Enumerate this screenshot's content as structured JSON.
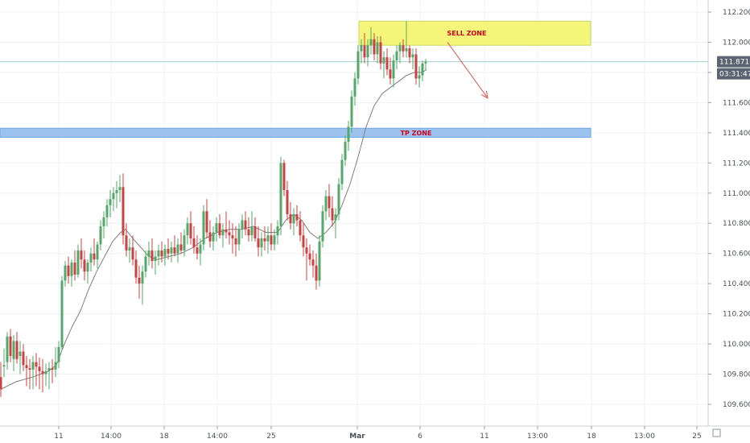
{
  "chart_data": {
    "type": "candlestick",
    "ylim": [
      109.55,
      112.28
    ],
    "xlim": [
      0,
      880
    ],
    "y_ticks": [
      "112.200",
      "112.000",
      "111.800",
      "111.600",
      "111.400",
      "111.200",
      "111.000",
      "110.800",
      "110.600",
      "110.400",
      "110.200",
      "110.000",
      "109.800",
      "109.600"
    ],
    "x_ticks": [
      {
        "label": "11",
        "x": 73,
        "bold": false
      },
      {
        "label": "14:00",
        "x": 138,
        "bold": false
      },
      {
        "label": "18",
        "x": 204,
        "bold": false
      },
      {
        "label": "14:00",
        "x": 270,
        "bold": false
      },
      {
        "label": "25",
        "x": 337,
        "bold": false
      },
      {
        "label": "Mar",
        "x": 444,
        "bold": true
      },
      {
        "label": "6",
        "x": 522,
        "bold": false
      },
      {
        "label": "11",
        "x": 602,
        "bold": false
      },
      {
        "label": "13:00",
        "x": 668,
        "bold": false
      },
      {
        "label": "18",
        "x": 735,
        "bold": false
      },
      {
        "label": "13:00",
        "x": 801,
        "bold": false
      },
      {
        "label": "25",
        "x": 866,
        "bold": false
      }
    ],
    "last_price": "111.871",
    "countdown": "03:31:47",
    "zones": [
      {
        "label": "SELL ZONE",
        "from_x": 446,
        "to_x": 734,
        "y_low": 111.98,
        "y_high": 112.14,
        "fill": "#f5f57a",
        "text_color": "#d0021b"
      },
      {
        "label": "TP ZONE",
        "from_x": 0,
        "to_x": 734,
        "y_low": 111.37,
        "y_high": 111.43,
        "fill": "#9cc3ef",
        "text_color": "#d0021b"
      }
    ],
    "arrow": {
      "from": [
        556,
        112.0
      ],
      "to": [
        606,
        111.63
      ],
      "color": "#e0504f"
    },
    "colors": {
      "up": "#53a96a",
      "down": "#cc4242",
      "ma": "#7d7d7d",
      "grid": "#eef0f3",
      "price_line": "#79b8b1"
    },
    "candles": [
      [
        1,
        109.78,
        109.88,
        109.65,
        109.7
      ],
      [
        5,
        109.85,
        109.97,
        109.78,
        109.86
      ],
      [
        9,
        109.88,
        110.08,
        109.83,
        110.05
      ],
      [
        13,
        110.05,
        110.1,
        109.88,
        109.92
      ],
      [
        17,
        109.9,
        110.06,
        109.82,
        110.02
      ],
      [
        21,
        110.02,
        110.08,
        109.87,
        109.9
      ],
      [
        25,
        109.92,
        110.02,
        109.8,
        109.95
      ],
      [
        29,
        109.95,
        110.0,
        109.82,
        109.86
      ],
      [
        33,
        109.86,
        109.92,
        109.72,
        109.84
      ],
      [
        37,
        109.84,
        109.9,
        109.7,
        109.83
      ],
      [
        41,
        109.83,
        109.92,
        109.7,
        109.88
      ],
      [
        45,
        109.88,
        109.94,
        109.72,
        109.85
      ],
      [
        49,
        109.85,
        109.91,
        109.7,
        109.82
      ],
      [
        53,
        109.82,
        109.9,
        109.68,
        109.8
      ],
      [
        57,
        109.8,
        109.87,
        109.72,
        109.82
      ],
      [
        61,
        109.82,
        109.88,
        109.7,
        109.84
      ],
      [
        65,
        109.84,
        109.9,
        109.74,
        109.83
      ],
      [
        69,
        109.83,
        109.98,
        109.78,
        109.88
      ],
      [
        73,
        109.88,
        110.02,
        109.84,
        109.98
      ],
      [
        77,
        109.98,
        110.45,
        109.96,
        110.42
      ],
      [
        81,
        110.42,
        110.55,
        110.38,
        110.52
      ],
      [
        85,
        110.52,
        110.58,
        110.4,
        110.45
      ],
      [
        89,
        110.45,
        110.56,
        110.38,
        110.54
      ],
      [
        93,
        110.54,
        110.62,
        110.42,
        110.46
      ],
      [
        97,
        110.46,
        110.66,
        110.44,
        110.62
      ],
      [
        101,
        110.62,
        110.7,
        110.5,
        110.56
      ],
      [
        105,
        110.56,
        110.62,
        110.42,
        110.48
      ],
      [
        109,
        110.48,
        110.56,
        110.4,
        110.54
      ],
      [
        113,
        110.54,
        110.64,
        110.48,
        110.6
      ],
      [
        117,
        110.6,
        110.7,
        110.52,
        110.56
      ],
      [
        121,
        110.56,
        110.68,
        110.5,
        110.66
      ],
      [
        125,
        110.66,
        110.82,
        110.62,
        110.78
      ],
      [
        129,
        110.78,
        110.88,
        110.7,
        110.84
      ],
      [
        133,
        110.84,
        110.96,
        110.78,
        110.92
      ],
      [
        137,
        110.92,
        111.02,
        110.84,
        110.96
      ],
      [
        141,
        110.96,
        111.04,
        110.88,
        111.0
      ],
      [
        145,
        111.0,
        111.08,
        110.9,
        111.02
      ],
      [
        149,
        111.02,
        111.12,
        110.94,
        111.04
      ],
      [
        153,
        111.04,
        111.13,
        110.66,
        110.72
      ],
      [
        157,
        110.72,
        110.8,
        110.58,
        110.62
      ],
      [
        161,
        110.62,
        110.7,
        110.54,
        110.64
      ],
      [
        165,
        110.64,
        110.72,
        110.52,
        110.56
      ],
      [
        169,
        110.56,
        110.62,
        110.4,
        110.44
      ],
      [
        173,
        110.44,
        110.52,
        110.3,
        110.4
      ],
      [
        177,
        110.4,
        110.52,
        110.26,
        110.48
      ],
      [
        181,
        110.48,
        110.62,
        110.44,
        110.58
      ],
      [
        185,
        110.58,
        110.68,
        110.52,
        110.62
      ],
      [
        189,
        110.62,
        110.7,
        110.5,
        110.55
      ],
      [
        193,
        110.55,
        110.62,
        110.46,
        110.58
      ],
      [
        197,
        110.58,
        110.66,
        110.52,
        110.62
      ],
      [
        201,
        110.62,
        110.68,
        110.54,
        110.58
      ],
      [
        205,
        110.58,
        110.66,
        110.52,
        110.63
      ],
      [
        209,
        110.63,
        110.7,
        110.56,
        110.6
      ],
      [
        213,
        110.6,
        110.68,
        110.54,
        110.64
      ],
      [
        217,
        110.64,
        110.72,
        110.58,
        110.6
      ],
      [
        221,
        110.6,
        110.7,
        110.54,
        110.66
      ],
      [
        225,
        110.66,
        110.74,
        110.6,
        110.62
      ],
      [
        229,
        110.62,
        110.76,
        110.58,
        110.72
      ],
      [
        233,
        110.72,
        110.84,
        110.66,
        110.8
      ],
      [
        237,
        110.8,
        110.88,
        110.66,
        110.7
      ],
      [
        241,
        110.7,
        110.78,
        110.6,
        110.64
      ],
      [
        245,
        110.64,
        110.72,
        110.56,
        110.6
      ],
      [
        249,
        110.6,
        110.7,
        110.52,
        110.66
      ],
      [
        253,
        110.66,
        110.92,
        110.62,
        110.88
      ],
      [
        257,
        110.88,
        110.96,
        110.7,
        110.74
      ],
      [
        261,
        110.74,
        110.82,
        110.64,
        110.68
      ],
      [
        265,
        110.68,
        110.78,
        110.62,
        110.74
      ],
      [
        269,
        110.74,
        110.84,
        110.68,
        110.8
      ],
      [
        273,
        110.8,
        110.86,
        110.7,
        110.72
      ],
      [
        277,
        110.72,
        110.8,
        110.64,
        110.76
      ],
      [
        281,
        110.76,
        110.88,
        110.7,
        110.74
      ],
      [
        285,
        110.74,
        110.82,
        110.66,
        110.72
      ],
      [
        289,
        110.72,
        110.8,
        110.6,
        110.7
      ],
      [
        293,
        110.7,
        110.78,
        110.58,
        110.66
      ],
      [
        297,
        110.66,
        110.8,
        110.62,
        110.76
      ],
      [
        301,
        110.76,
        110.86,
        110.7,
        110.82
      ],
      [
        305,
        110.82,
        110.88,
        110.72,
        110.76
      ],
      [
        309,
        110.76,
        110.84,
        110.68,
        110.72
      ],
      [
        313,
        110.72,
        110.88,
        110.68,
        110.78
      ],
      [
        317,
        110.78,
        110.84,
        110.68,
        110.7
      ],
      [
        321,
        110.7,
        110.78,
        110.58,
        110.64
      ],
      [
        325,
        110.64,
        110.74,
        110.58,
        110.7
      ],
      [
        329,
        110.7,
        110.78,
        110.62,
        110.68
      ],
      [
        333,
        110.68,
        110.78,
        110.6,
        110.72
      ],
      [
        337,
        110.72,
        110.8,
        110.62,
        110.66
      ],
      [
        341,
        110.66,
        110.76,
        110.62,
        110.72
      ],
      [
        345,
        110.72,
        110.82,
        110.66,
        110.78
      ],
      [
        349,
        110.78,
        111.24,
        110.72,
        111.2
      ],
      [
        353,
        111.2,
        111.22,
        110.98,
        111.02
      ],
      [
        357,
        111.02,
        111.08,
        110.82,
        110.86
      ],
      [
        361,
        110.86,
        110.94,
        110.76,
        110.8
      ],
      [
        365,
        110.8,
        110.9,
        110.72,
        110.86
      ],
      [
        369,
        110.86,
        110.92,
        110.78,
        110.82
      ],
      [
        373,
        110.82,
        110.88,
        110.68,
        110.72
      ],
      [
        377,
        110.72,
        110.8,
        110.58,
        110.64
      ],
      [
        381,
        110.64,
        110.7,
        110.42,
        110.6
      ],
      [
        385,
        110.6,
        110.66,
        110.52,
        110.56
      ],
      [
        389,
        110.56,
        110.62,
        110.44,
        110.52
      ],
      [
        393,
        110.52,
        110.6,
        110.36,
        110.42
      ],
      [
        397,
        110.42,
        110.72,
        110.38,
        110.68
      ],
      [
        401,
        110.68,
        110.92,
        110.64,
        110.88
      ],
      [
        405,
        110.88,
        111.02,
        110.82,
        110.98
      ],
      [
        409,
        110.98,
        111.06,
        110.84,
        110.9
      ],
      [
        413,
        110.9,
        110.98,
        110.78,
        110.82
      ],
      [
        417,
        110.82,
        110.9,
        110.7,
        110.86
      ],
      [
        421,
        110.86,
        111.1,
        110.82,
        111.06
      ],
      [
        425,
        111.06,
        111.26,
        111.02,
        111.22
      ],
      [
        429,
        111.22,
        111.38,
        111.18,
        111.34
      ],
      [
        433,
        111.34,
        111.48,
        111.28,
        111.44
      ],
      [
        437,
        111.44,
        111.68,
        111.4,
        111.64
      ],
      [
        441,
        111.64,
        111.8,
        111.58,
        111.76
      ],
      [
        445,
        111.76,
        111.98,
        111.72,
        111.94
      ],
      [
        449,
        111.94,
        112.02,
        111.86,
        111.98
      ],
      [
        453,
        111.98,
        112.06,
        111.86,
        111.9
      ],
      [
        457,
        111.9,
        112.02,
        111.84,
        111.98
      ],
      [
        461,
        111.98,
        112.1,
        111.92,
        112.02
      ],
      [
        465,
        112.02,
        112.06,
        111.88,
        111.92
      ],
      [
        469,
        111.92,
        112.04,
        111.86,
        112.0
      ],
      [
        473,
        112.0,
        112.04,
        111.82,
        111.86
      ],
      [
        477,
        111.86,
        111.94,
        111.76,
        111.9
      ],
      [
        481,
        111.9,
        111.96,
        111.78,
        111.82
      ],
      [
        485,
        111.82,
        111.9,
        111.72,
        111.76
      ],
      [
        489,
        111.76,
        111.92,
        111.7,
        111.88
      ],
      [
        493,
        111.88,
        111.98,
        111.82,
        111.94
      ],
      [
        497,
        111.94,
        112.0,
        111.86,
        111.98
      ],
      [
        501,
        111.98,
        112.02,
        111.9,
        111.94
      ],
      [
        505,
        111.94,
        112.14,
        111.9,
        111.96
      ],
      [
        509,
        111.96,
        111.98,
        111.86,
        111.9
      ],
      [
        513,
        111.9,
        111.96,
        111.82,
        111.92
      ],
      [
        517,
        111.92,
        111.96,
        111.72,
        111.76
      ],
      [
        521,
        111.76,
        111.84,
        111.7,
        111.78
      ],
      [
        525,
        111.78,
        111.88,
        111.74,
        111.86
      ],
      [
        529,
        111.86,
        111.89,
        111.82,
        111.871
      ]
    ],
    "ma": [
      [
        1,
        109.7
      ],
      [
        20,
        109.75
      ],
      [
        40,
        109.78
      ],
      [
        60,
        109.82
      ],
      [
        70,
        109.86
      ],
      [
        80,
        110.0
      ],
      [
        90,
        110.12
      ],
      [
        100,
        110.22
      ],
      [
        110,
        110.36
      ],
      [
        120,
        110.48
      ],
      [
        130,
        110.58
      ],
      [
        140,
        110.68
      ],
      [
        150,
        110.74
      ],
      [
        156,
        110.76
      ],
      [
        165,
        110.7
      ],
      [
        175,
        110.64
      ],
      [
        185,
        110.58
      ],
      [
        195,
        110.56
      ],
      [
        210,
        110.58
      ],
      [
        225,
        110.6
      ],
      [
        240,
        110.64
      ],
      [
        255,
        110.7
      ],
      [
        270,
        110.74
      ],
      [
        285,
        110.76
      ],
      [
        300,
        110.76
      ],
      [
        315,
        110.78
      ],
      [
        330,
        110.74
      ],
      [
        345,
        110.74
      ],
      [
        355,
        110.82
      ],
      [
        365,
        110.86
      ],
      [
        375,
        110.82
      ],
      [
        385,
        110.74
      ],
      [
        395,
        110.7
      ],
      [
        405,
        110.74
      ],
      [
        415,
        110.8
      ],
      [
        425,
        110.92
      ],
      [
        435,
        111.06
      ],
      [
        445,
        111.24
      ],
      [
        455,
        111.44
      ],
      [
        465,
        111.58
      ],
      [
        475,
        111.66
      ],
      [
        485,
        111.7
      ],
      [
        495,
        111.74
      ],
      [
        505,
        111.78
      ],
      [
        515,
        111.8
      ],
      [
        525,
        111.8
      ],
      [
        530,
        111.82
      ]
    ]
  }
}
